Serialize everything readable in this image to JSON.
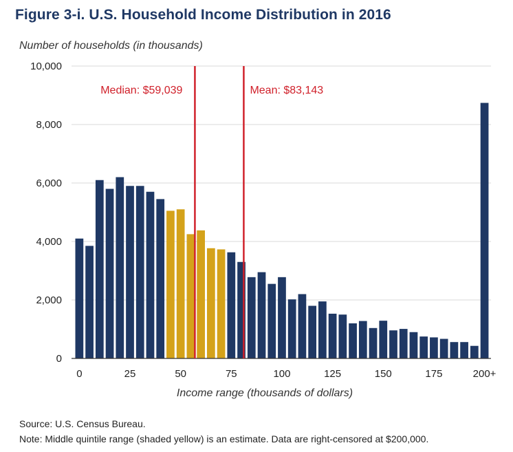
{
  "title": "Figure 3-i. U.S. Household Income Distribution in 2016",
  "source": "Source: U.S. Census Bureau.",
  "note": "Note: Middle quintile range (shaded yellow) is an estimate. Data are right-censored at $200,000.",
  "colors": {
    "bar": "#1f3864",
    "highlight": "#d4a21a",
    "marker": "#d0202a",
    "grid": "#d9d9d9"
  },
  "chart_data": {
    "type": "bar",
    "ylabel": "Number of households (in thousands)",
    "xlabel": "Income range (thousands of dollars)",
    "ylim": [
      0,
      10000
    ],
    "yticks": [
      0,
      2000,
      4000,
      6000,
      8000,
      10000
    ],
    "ytick_labels": [
      "0",
      "2,000",
      "4,000",
      "6,000",
      "8,000",
      "10,000"
    ],
    "xtick_labels": [
      {
        "label": "0",
        "x": 0
      },
      {
        "label": "25",
        "x": 25
      },
      {
        "label": "50",
        "x": 50
      },
      {
        "label": "75",
        "x": 75
      },
      {
        "label": "100",
        "x": 100
      },
      {
        "label": "125",
        "x": 125
      },
      {
        "label": "150",
        "x": 150
      },
      {
        "label": "175",
        "x": 175
      },
      {
        "label": "200+",
        "x": 200
      }
    ],
    "bin_width": 5,
    "bins": [
      {
        "x": 0,
        "value": 4100,
        "highlight": false
      },
      {
        "x": 5,
        "value": 3850,
        "highlight": false
      },
      {
        "x": 10,
        "value": 6100,
        "highlight": false
      },
      {
        "x": 15,
        "value": 5800,
        "highlight": false
      },
      {
        "x": 20,
        "value": 6200,
        "highlight": false
      },
      {
        "x": 25,
        "value": 5900,
        "highlight": false
      },
      {
        "x": 30,
        "value": 5900,
        "highlight": false
      },
      {
        "x": 35,
        "value": 5700,
        "highlight": false
      },
      {
        "x": 40,
        "value": 5450,
        "highlight": false
      },
      {
        "x": 45,
        "value": 5050,
        "highlight": true
      },
      {
        "x": 50,
        "value": 5100,
        "highlight": true
      },
      {
        "x": 55,
        "value": 4250,
        "highlight": true
      },
      {
        "x": 60,
        "value": 4380,
        "highlight": true
      },
      {
        "x": 65,
        "value": 3770,
        "highlight": true
      },
      {
        "x": 70,
        "value": 3730,
        "highlight": true
      },
      {
        "x": 75,
        "value": 3630,
        "highlight": false
      },
      {
        "x": 80,
        "value": 3300,
        "highlight": false
      },
      {
        "x": 85,
        "value": 2780,
        "highlight": false
      },
      {
        "x": 90,
        "value": 2950,
        "highlight": false
      },
      {
        "x": 95,
        "value": 2550,
        "highlight": false
      },
      {
        "x": 100,
        "value": 2780,
        "highlight": false
      },
      {
        "x": 105,
        "value": 2020,
        "highlight": false
      },
      {
        "x": 110,
        "value": 2200,
        "highlight": false
      },
      {
        "x": 115,
        "value": 1800,
        "highlight": false
      },
      {
        "x": 120,
        "value": 1950,
        "highlight": false
      },
      {
        "x": 125,
        "value": 1530,
        "highlight": false
      },
      {
        "x": 130,
        "value": 1500,
        "highlight": false
      },
      {
        "x": 135,
        "value": 1200,
        "highlight": false
      },
      {
        "x": 140,
        "value": 1280,
        "highlight": false
      },
      {
        "x": 145,
        "value": 1040,
        "highlight": false
      },
      {
        "x": 150,
        "value": 1290,
        "highlight": false
      },
      {
        "x": 155,
        "value": 960,
        "highlight": false
      },
      {
        "x": 160,
        "value": 1010,
        "highlight": false
      },
      {
        "x": 165,
        "value": 900,
        "highlight": false
      },
      {
        "x": 170,
        "value": 750,
        "highlight": false
      },
      {
        "x": 175,
        "value": 720,
        "highlight": false
      },
      {
        "x": 180,
        "value": 670,
        "highlight": false
      },
      {
        "x": 185,
        "value": 560,
        "highlight": false
      },
      {
        "x": 190,
        "value": 560,
        "highlight": false
      },
      {
        "x": 195,
        "value": 430,
        "highlight": false
      },
      {
        "x": 200,
        "value": 8740,
        "highlight": false
      }
    ],
    "reference_lines": [
      {
        "label": "Median: $59,039",
        "x": 59.039
      },
      {
        "label": "Mean: $83,143",
        "x": 83.143
      }
    ],
    "grid": true
  }
}
